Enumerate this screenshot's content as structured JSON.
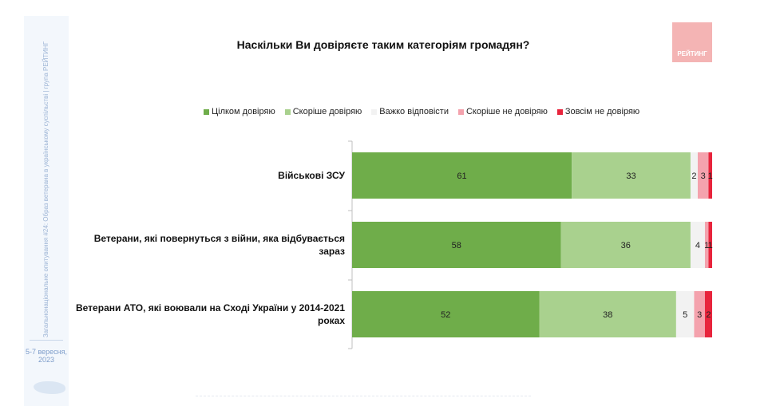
{
  "sidebar": {
    "vertical_text": "Загальнонаціональне опитування #24: Образ ветерана в українському суспільстві | група РЕЙТИНГ",
    "date": "5-7 вересня, 2023"
  },
  "logo": {
    "text": "РЕЙТИНГ",
    "color": "#f4b4b4"
  },
  "chart_data": {
    "type": "bar",
    "orientation": "horizontal",
    "stacked": true,
    "title": "Наскільки Ви довіряєте таким категоріям громадян?",
    "categories": [
      "Військові ЗСУ",
      "Ветерани, які повернуться з війни, яка відбувається зараз",
      "Ветерани АТО, які воювали на Сході України у 2014-2021 роках"
    ],
    "series": [
      {
        "name": "Цілком довіряю",
        "color": "#6fad4a",
        "values": [
          61,
          58,
          52
        ]
      },
      {
        "name": "Скоріше довіряю",
        "color": "#a9d18e",
        "values": [
          33,
          36,
          38
        ]
      },
      {
        "name": "Важко відповісти",
        "color": "#f2f2f2",
        "values": [
          2,
          4,
          5
        ]
      },
      {
        "name": "Скоріше не довіряю",
        "color": "#f4a2ad",
        "values": [
          3,
          1,
          3
        ]
      },
      {
        "name": "Зовсім не довіряю",
        "color": "#e8243c",
        "values": [
          1,
          1,
          2
        ]
      }
    ],
    "xlim": [
      0,
      100
    ],
    "legend_position": "top",
    "grid": false
  }
}
